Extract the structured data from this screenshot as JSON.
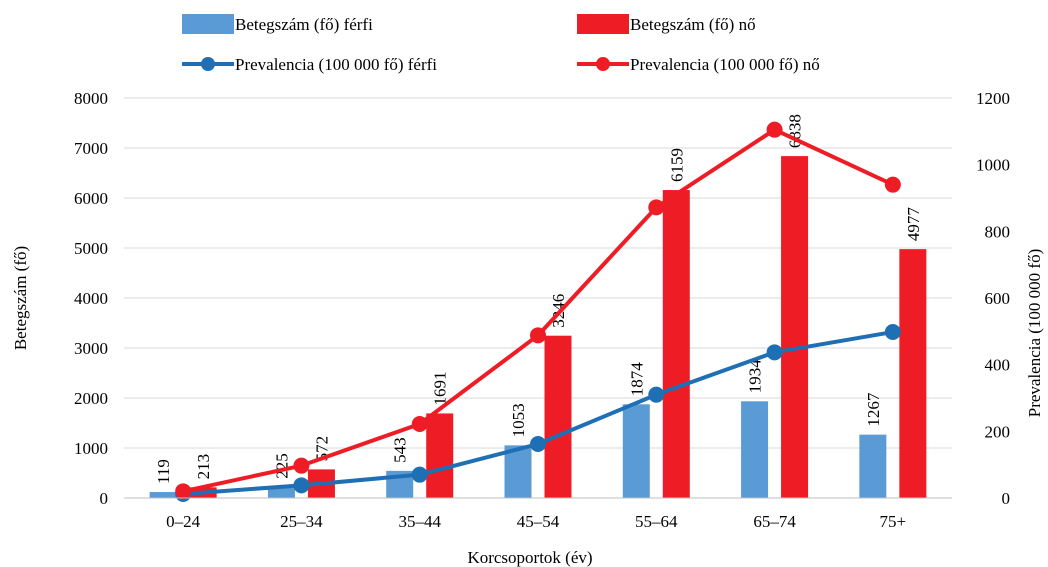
{
  "chart_data": {
    "type": "bar",
    "categories": [
      "0–24",
      "25–34",
      "35–44",
      "45–54",
      "55–64",
      "65–74",
      "75+"
    ],
    "xlabel": "Korcsoportok (év)",
    "ylabel": "Betegszám (fő)",
    "y2label": "Prevalencia (100 000 fő)",
    "ylim": [
      0,
      8000
    ],
    "yticks": [
      0,
      1000,
      2000,
      3000,
      4000,
      5000,
      6000,
      7000,
      8000
    ],
    "y2lim": [
      0,
      1200
    ],
    "y2ticks": [
      0,
      200,
      400,
      600,
      800,
      1000,
      1200
    ],
    "grid": true,
    "legend_position": "top",
    "bar_series": [
      {
        "name": "Betegszám (fő) férfi",
        "color": "#5b9bd5",
        "values": [
          119,
          225,
          543,
          1053,
          1874,
          1934,
          1267
        ]
      },
      {
        "name": "Betegszám (fő) nő",
        "color": "#ee1c25",
        "values": [
          213,
          572,
          1691,
          3246,
          6159,
          6838,
          4977
        ]
      }
    ],
    "line_series": [
      {
        "name": "Prevalencia (100 000 fő) férfi",
        "color": "#1f6fb5",
        "axis": "right",
        "values": [
          12,
          38,
          70,
          162,
          310,
          437,
          498
        ]
      },
      {
        "name": "Prevalencia (100 000 fő) nő",
        "color": "#ee1c25",
        "axis": "right",
        "values": [
          20,
          97,
          222,
          488,
          872,
          1105,
          940
        ]
      }
    ]
  }
}
